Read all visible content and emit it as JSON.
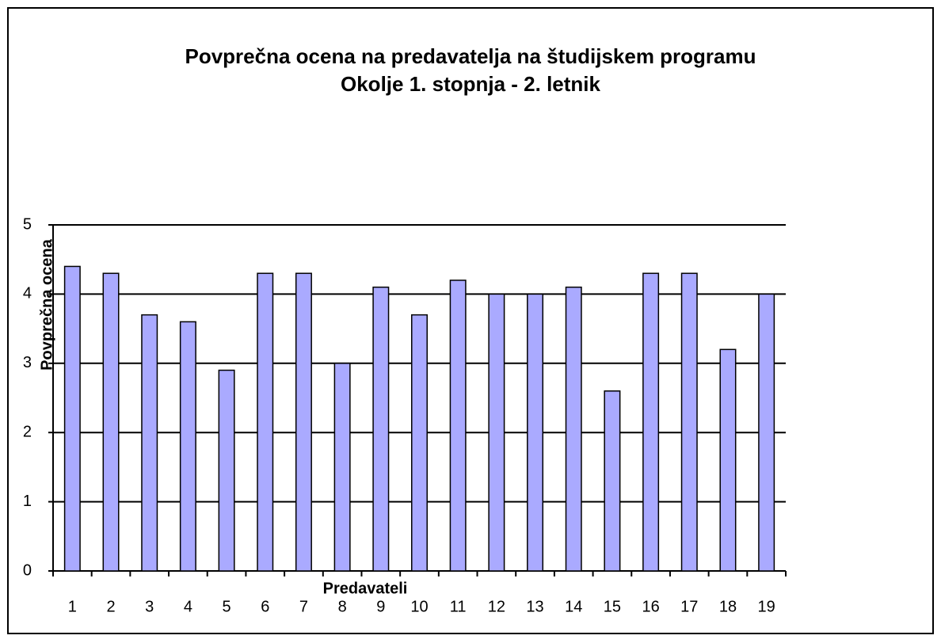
{
  "chart_data": {
    "type": "bar",
    "title": "Povprečna ocena na predavatelja na študijskem programu",
    "subtitle": "Okolje 1. stopnja - 2. letnik",
    "x_label": "Predavateli",
    "y_label": "Povprečna ocena",
    "categories": [
      "1",
      "2",
      "3",
      "4",
      "5",
      "6",
      "7",
      "8",
      "9",
      "10",
      "11",
      "12",
      "13",
      "14",
      "15",
      "16",
      "17",
      "18",
      "19"
    ],
    "values": [
      4.4,
      4.3,
      3.7,
      3.6,
      2.9,
      4.3,
      4.3,
      3.0,
      4.1,
      3.7,
      4.2,
      4.0,
      4.0,
      4.1,
      2.6,
      4.3,
      4.3,
      3.2,
      4.0
    ],
    "color": "#aaaaff",
    "ylim": [
      0,
      5
    ],
    "yticks": [
      0,
      1,
      2,
      3,
      4,
      5
    ],
    "grid": true
  }
}
